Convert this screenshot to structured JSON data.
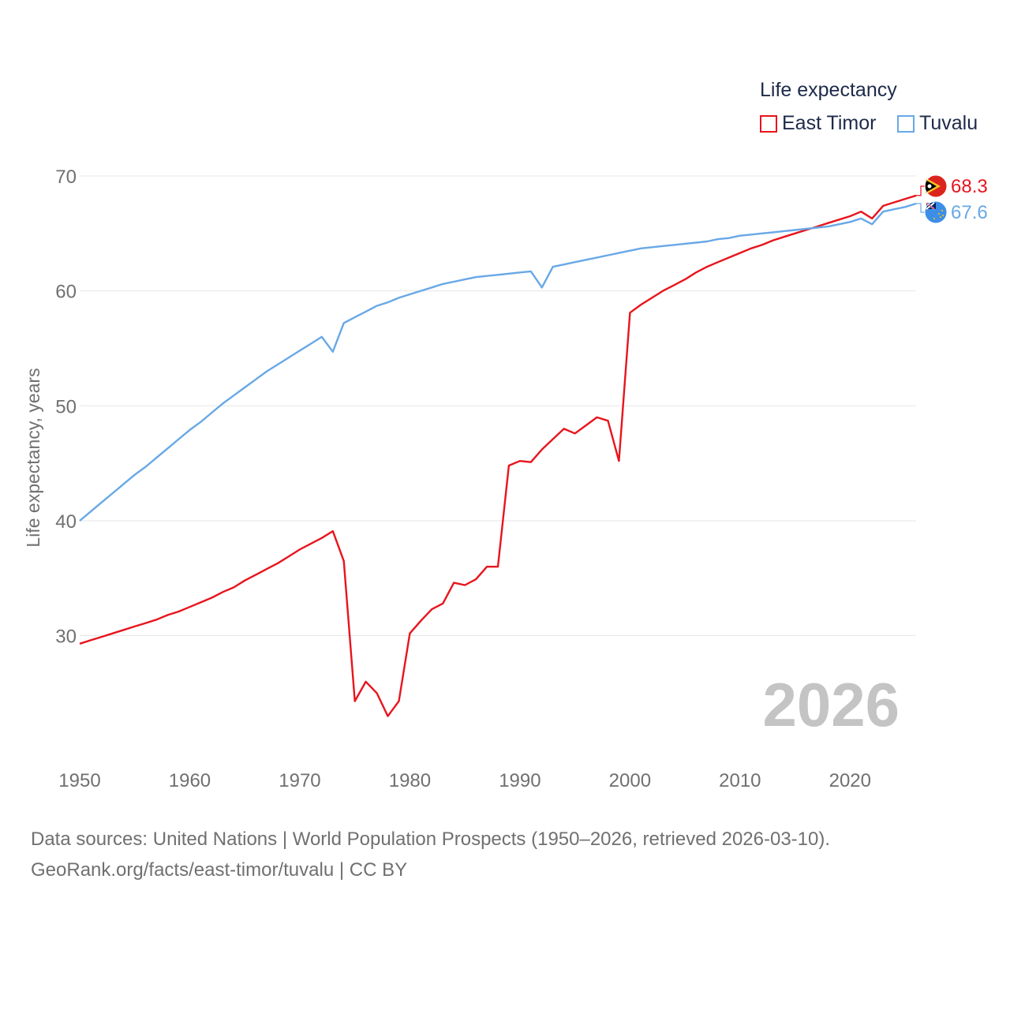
{
  "legend": {
    "title": "Life expectancy",
    "items": [
      {
        "label": "East Timor",
        "color": "#e8141c"
      },
      {
        "label": "Tuvalu",
        "color": "#68a8e6"
      }
    ]
  },
  "year_watermark": "2026",
  "footer": {
    "line1": "Data sources: United Nations | World Population Prospects (1950–2026, retrieved 2026-03-10).",
    "line2": "GeoRank.org/facts/east-timor/tuvalu | CC BY"
  },
  "chart_data": {
    "type": "line",
    "title": "Life expectancy",
    "xlabel": "",
    "ylabel": "Life expectancy, years",
    "xlim": [
      1950,
      2026
    ],
    "ylim": [
      20.2,
      72
    ],
    "xticks": [
      1950,
      1960,
      1970,
      1980,
      1990,
      2000,
      2010,
      2020
    ],
    "yticks": [
      30,
      40,
      50,
      60,
      70
    ],
    "grid": true,
    "legend_position": "top-right",
    "end_labels": [
      {
        "series": "East Timor",
        "value": "68.3",
        "color": "#e8141c",
        "flag": "east-timor-flag-icon"
      },
      {
        "series": "Tuvalu",
        "value": "67.6",
        "color": "#68a8e6",
        "flag": "tuvalu-flag-icon"
      }
    ],
    "x": [
      1950,
      1951,
      1952,
      1953,
      1954,
      1955,
      1956,
      1957,
      1958,
      1959,
      1960,
      1961,
      1962,
      1963,
      1964,
      1965,
      1966,
      1967,
      1968,
      1969,
      1970,
      1971,
      1972,
      1973,
      1974,
      1975,
      1976,
      1977,
      1978,
      1979,
      1980,
      1981,
      1982,
      1983,
      1984,
      1985,
      1986,
      1987,
      1988,
      1989,
      1990,
      1991,
      1992,
      1993,
      1994,
      1995,
      1996,
      1997,
      1998,
      1999,
      2000,
      2001,
      2002,
      2003,
      2004,
      2005,
      2006,
      2007,
      2008,
      2009,
      2010,
      2011,
      2012,
      2013,
      2014,
      2015,
      2016,
      2017,
      2018,
      2019,
      2020,
      2021,
      2022,
      2023,
      2024,
      2025,
      2026
    ],
    "series": [
      {
        "name": "East Timor",
        "color": "#e8141c",
        "values": [
          29.3,
          29.6,
          29.9,
          30.2,
          30.5,
          30.8,
          31.1,
          31.4,
          31.8,
          32.1,
          32.5,
          32.9,
          33.3,
          33.8,
          34.2,
          34.8,
          35.3,
          35.8,
          36.3,
          36.9,
          37.5,
          38.0,
          38.5,
          39.1,
          36.5,
          24.3,
          26.0,
          25.0,
          23.0,
          24.3,
          30.2,
          31.3,
          32.3,
          32.8,
          34.6,
          34.4,
          34.9,
          36.0,
          36.0,
          44.8,
          45.2,
          45.1,
          46.2,
          47.1,
          48.0,
          47.6,
          48.3,
          49.0,
          48.7,
          45.2,
          58.1,
          58.8,
          59.4,
          60.0,
          60.5,
          61.0,
          61.6,
          62.1,
          62.5,
          62.9,
          63.3,
          63.7,
          64.0,
          64.4,
          64.7,
          65.0,
          65.3,
          65.6,
          65.9,
          66.2,
          66.5,
          66.9,
          66.3,
          67.4,
          67.7,
          68.0,
          68.3
        ]
      },
      {
        "name": "Tuvalu",
        "color": "#68a8e6",
        "values": [
          40.0,
          40.8,
          41.6,
          42.4,
          43.2,
          44.0,
          44.7,
          45.5,
          46.3,
          47.1,
          47.9,
          48.6,
          49.4,
          50.2,
          50.9,
          51.6,
          52.3,
          53.0,
          53.6,
          54.2,
          54.8,
          55.4,
          56.0,
          54.7,
          57.2,
          57.7,
          58.2,
          58.7,
          59.0,
          59.4,
          59.7,
          60.0,
          60.3,
          60.6,
          60.8,
          61.0,
          61.2,
          61.3,
          61.4,
          61.5,
          61.6,
          61.7,
          60.3,
          62.1,
          62.3,
          62.5,
          62.7,
          62.9,
          63.1,
          63.3,
          63.5,
          63.7,
          63.8,
          63.9,
          64.0,
          64.1,
          64.2,
          64.3,
          64.5,
          64.6,
          64.8,
          64.9,
          65.0,
          65.1,
          65.2,
          65.3,
          65.4,
          65.5,
          65.6,
          65.8,
          66.0,
          66.3,
          65.8,
          66.9,
          67.1,
          67.3,
          67.6
        ]
      }
    ]
  }
}
